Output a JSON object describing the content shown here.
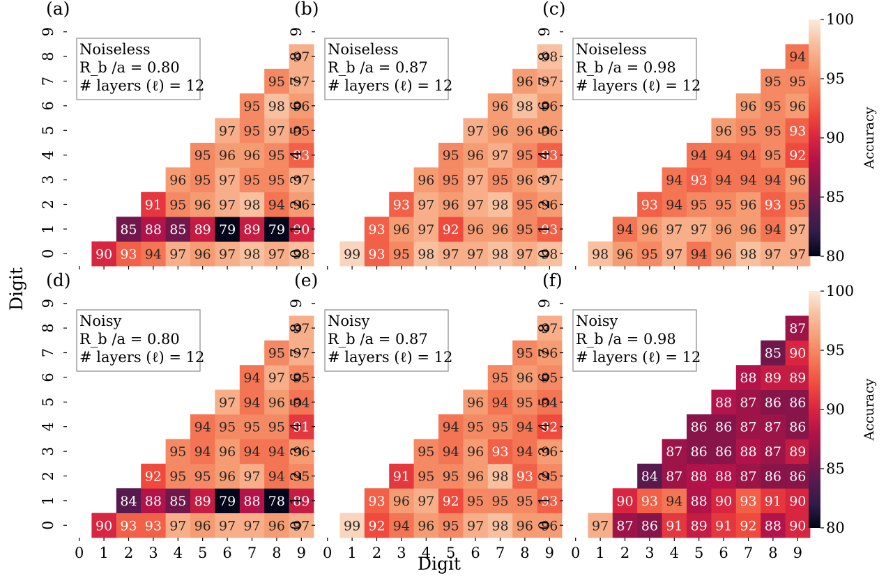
{
  "figure": {
    "xlabel": "Digit",
    "ylabel": "Digit",
    "colorbar": {
      "label": "Accuracy",
      "range": [
        80,
        100
      ],
      "ticks": [
        "100",
        "95",
        "90",
        "85",
        "80"
      ],
      "colormap": "rocket"
    }
  },
  "chart_data": [
    {
      "type": "heatmap",
      "panel_label": "(a)",
      "annotation": [
        "Noiseless",
        "R_b /a = 0.80",
        "# layers (ℓ) = 12"
      ],
      "x_ticks": [
        "0",
        "1",
        "2",
        "3",
        "4",
        "5",
        "6",
        "7",
        "8",
        "9"
      ],
      "y_ticks": [
        "0",
        "1",
        "2",
        "3",
        "4",
        "5",
        "6",
        "7",
        "8",
        "9"
      ],
      "xlabel": "",
      "ylabel": "",
      "zlim": [
        80,
        100
      ],
      "rows": {
        "0": [
          90,
          93,
          94,
          97,
          96,
          97,
          98,
          97,
          98
        ],
        "1": [
          85,
          88,
          85,
          89,
          79,
          89,
          79,
          90
        ],
        "2": [
          91,
          95,
          96,
          97,
          98,
          94,
          96
        ],
        "3": [
          96,
          95,
          97,
          95,
          95,
          97
        ],
        "4": [
          95,
          96,
          96,
          95,
          93
        ],
        "5": [
          97,
          95,
          97,
          95
        ],
        "6": [
          95,
          98,
          96
        ],
        "7": [
          95,
          97
        ],
        "8": [
          97
        ]
      }
    },
    {
      "type": "heatmap",
      "panel_label": "(b)",
      "annotation": [
        "Noiseless",
        "R_b /a = 0.87",
        "# layers (ℓ) = 12"
      ],
      "x_ticks": [
        "0",
        "1",
        "2",
        "3",
        "4",
        "5",
        "6",
        "7",
        "8",
        "9"
      ],
      "y_ticks": [
        "0",
        "1",
        "2",
        "3",
        "4",
        "5",
        "6",
        "7",
        "8",
        "9"
      ],
      "zlim": [
        80,
        100
      ],
      "rows": {
        "0": [
          99,
          93,
          95,
          98,
          97,
          97,
          98,
          97,
          98
        ],
        "1": [
          93,
          96,
          97,
          92,
          96,
          96,
          95,
          93
        ],
        "2": [
          93,
          97,
          96,
          97,
          98,
          95,
          96
        ],
        "3": [
          96,
          95,
          97,
          95,
          96,
          97
        ],
        "4": [
          95,
          96,
          97,
          95,
          93
        ],
        "5": [
          97,
          96,
          96,
          96
        ],
        "6": [
          96,
          98,
          96
        ],
        "7": [
          96,
          97
        ],
        "8": [
          98
        ]
      }
    },
    {
      "type": "heatmap",
      "panel_label": "(c)",
      "annotation": [
        "Noiseless",
        "R_b /a = 0.98",
        "# layers (ℓ) = 12"
      ],
      "x_ticks": [
        "0",
        "1",
        "2",
        "3",
        "4",
        "5",
        "6",
        "7",
        "8",
        "9"
      ],
      "y_ticks": [
        "0",
        "1",
        "2",
        "3",
        "4",
        "5",
        "6",
        "7",
        "8",
        "9"
      ],
      "zlim": [
        80,
        100
      ],
      "rows": {
        "0": [
          98,
          96,
          95,
          97,
          94,
          96,
          98,
          97,
          97
        ],
        "1": [
          94,
          96,
          97,
          97,
          96,
          96,
          94,
          97
        ],
        "2": [
          93,
          94,
          95,
          95,
          96,
          93,
          95
        ],
        "3": [
          94,
          93,
          94,
          94,
          94,
          96
        ],
        "4": [
          94,
          94,
          94,
          95,
          92
        ],
        "5": [
          96,
          95,
          95,
          93
        ],
        "6": [
          96,
          95,
          96
        ],
        "7": [
          95,
          95
        ],
        "8": [
          94
        ]
      }
    },
    {
      "type": "heatmap",
      "panel_label": "(d)",
      "annotation": [
        "Noisy",
        "R_b /a = 0.80",
        "# layers (ℓ) = 12"
      ],
      "x_ticks": [
        "0",
        "1",
        "2",
        "3",
        "4",
        "5",
        "6",
        "7",
        "8",
        "9"
      ],
      "y_ticks": [
        "0",
        "1",
        "2",
        "3",
        "4",
        "5",
        "6",
        "7",
        "8",
        "9"
      ],
      "zlim": [
        80,
        100
      ],
      "rows": {
        "0": [
          90,
          93,
          93,
          97,
          96,
          97,
          97,
          96,
          97
        ],
        "1": [
          84,
          88,
          85,
          89,
          79,
          88,
          78,
          89
        ],
        "2": [
          92,
          95,
          95,
          96,
          97,
          94,
          95
        ],
        "3": [
          95,
          94,
          96,
          94,
          94,
          96
        ],
        "4": [
          94,
          95,
          95,
          95,
          91
        ],
        "5": [
          97,
          94,
          96,
          94
        ],
        "6": [
          94,
          97,
          95
        ],
        "7": [
          95,
          97
        ],
        "8": [
          97
        ]
      }
    },
    {
      "type": "heatmap",
      "panel_label": "(e)",
      "annotation": [
        "Noisy",
        "R_b /a = 0.87",
        "# layers (ℓ) = 12"
      ],
      "x_ticks": [
        "0",
        "1",
        "2",
        "3",
        "4",
        "5",
        "6",
        "7",
        "8",
        "9"
      ],
      "y_ticks": [
        "0",
        "1",
        "2",
        "3",
        "4",
        "5",
        "6",
        "7",
        "8",
        "9"
      ],
      "zlim": [
        80,
        100
      ],
      "rows": {
        "0": [
          99,
          92,
          94,
          96,
          95,
          97,
          98,
          96,
          96
        ],
        "1": [
          93,
          96,
          97,
          92,
          95,
          95,
          95,
          93
        ],
        "2": [
          91,
          95,
          95,
          96,
          98,
          93,
          95
        ],
        "3": [
          95,
          94,
          96,
          93,
          94,
          96
        ],
        "4": [
          94,
          95,
          95,
          94,
          92
        ],
        "5": [
          96,
          94,
          95,
          94
        ],
        "6": [
          95,
          96,
          95
        ],
        "7": [
          95,
          96
        ],
        "8": [
          97
        ]
      }
    },
    {
      "type": "heatmap",
      "panel_label": "(f)",
      "annotation": [
        "Noisy",
        "R_b /a = 0.98",
        "# layers (ℓ) = 12"
      ],
      "x_ticks": [
        "0",
        "1",
        "2",
        "3",
        "4",
        "5",
        "6",
        "7",
        "8",
        "9"
      ],
      "y_ticks": [
        "0",
        "1",
        "2",
        "3",
        "4",
        "5",
        "6",
        "7",
        "8",
        "9"
      ],
      "zlim": [
        80,
        100
      ],
      "rows": {
        "0": [
          97,
          87,
          86,
          91,
          89,
          91,
          92,
          88,
          90
        ],
        "1": [
          90,
          93,
          94,
          88,
          90,
          93,
          91,
          90
        ],
        "2": [
          84,
          87,
          88,
          88,
          87,
          86,
          86
        ],
        "3": [
          87,
          86,
          86,
          88,
          87,
          89
        ],
        "4": [
          86,
          86,
          87,
          87,
          86
        ],
        "5": [
          88,
          87,
          86,
          86
        ],
        "6": [
          88,
          89,
          89
        ],
        "7": [
          85,
          90
        ],
        "8": [
          87
        ]
      }
    }
  ]
}
